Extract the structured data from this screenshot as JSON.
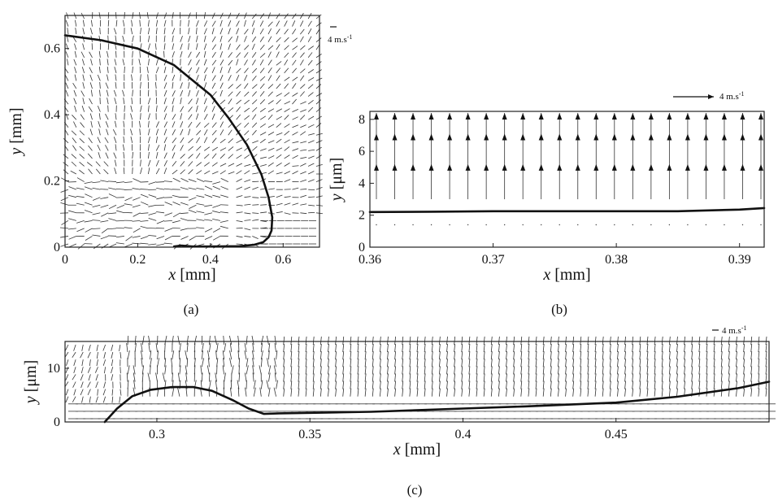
{
  "chart_data": [
    {
      "id": "a",
      "type": "quiver",
      "panel_label": "(a)",
      "xlabel": {
        "var": "x",
        "unit": "[mm]"
      },
      "ylabel": {
        "var": "y",
        "unit": "[mm]"
      },
      "xlim": [
        0,
        0.7
      ],
      "ylim": [
        0,
        0.7
      ],
      "xticks": [
        0,
        0.2,
        0.4,
        0.6
      ],
      "xtick_labels": [
        "0",
        "0.2",
        "0.4",
        "0.6"
      ],
      "yticks": [
        0,
        0.2,
        0.4,
        0.6
      ],
      "ytick_labels": [
        "0",
        "0.2",
        "0.4",
        "0.6"
      ],
      "scale_label": "4 m.s",
      "scale_label_exp": "-1",
      "interface_curve": {
        "x": [
          0,
          0.1,
          0.2,
          0.3,
          0.4,
          0.45,
          0.5,
          0.54,
          0.56,
          0.57,
          0.568,
          0.56,
          0.545,
          0.52,
          0.48,
          0.4,
          0.35,
          0.32,
          0.3
        ],
        "y": [
          0.64,
          0.625,
          0.6,
          0.55,
          0.46,
          0.39,
          0.31,
          0.22,
          0.15,
          0.09,
          0.05,
          0.03,
          0.015,
          0.007,
          0.003,
          0.002,
          0.002,
          0.005,
          0.002
        ]
      }
    },
    {
      "id": "b",
      "type": "quiver",
      "panel_label": "(b)",
      "xlabel": {
        "var": "x",
        "unit": "[mm]"
      },
      "ylabel": {
        "var": "y",
        "unit": "[μm]"
      },
      "xlim": [
        0.36,
        0.392
      ],
      "ylim": [
        0,
        8.5
      ],
      "xticks": [
        0.36,
        0.37,
        0.38,
        0.39
      ],
      "xtick_labels": [
        "0.36",
        "0.37",
        "0.38",
        "0.39"
      ],
      "yticks": [
        0,
        2,
        4,
        6,
        8
      ],
      "ytick_labels": [
        "0",
        "2",
        "4",
        "6",
        "8"
      ],
      "scale_label": "4 m.s",
      "scale_label_exp": "-1",
      "interface_curve": {
        "x": [
          0.36,
          0.365,
          0.37,
          0.375,
          0.38,
          0.385,
          0.39,
          0.392
        ],
        "y": [
          2.2,
          2.22,
          2.25,
          2.25,
          2.25,
          2.25,
          2.35,
          2.45
        ]
      }
    },
    {
      "id": "c",
      "type": "quiver",
      "panel_label": "(c)",
      "xlabel": {
        "var": "x",
        "unit": "[mm]"
      },
      "ylabel": {
        "var": "y",
        "unit": "[μm]"
      },
      "xlim": [
        0.27,
        0.5
      ],
      "ylim": [
        0,
        15
      ],
      "xticks": [
        0.3,
        0.35,
        0.4,
        0.45
      ],
      "xtick_labels": [
        "0.3",
        "0.35",
        "0.4",
        "0.45"
      ],
      "yticks": [
        0,
        10
      ],
      "ytick_labels": [
        "0",
        "10"
      ],
      "scale_label": "4 m.s",
      "scale_label_exp": "-1",
      "interface_curve": {
        "x": [
          0.283,
          0.287,
          0.292,
          0.298,
          0.305,
          0.312,
          0.318,
          0.325,
          0.33,
          0.335,
          0.34,
          0.35,
          0.37,
          0.4,
          0.42,
          0.45,
          0.47,
          0.49,
          0.5
        ],
        "y": [
          0,
          2.5,
          4.8,
          6.0,
          6.5,
          6.5,
          5.8,
          4.0,
          2.5,
          1.5,
          1.6,
          1.7,
          1.9,
          2.5,
          2.9,
          3.6,
          4.7,
          6.3,
          7.5
        ]
      }
    }
  ]
}
